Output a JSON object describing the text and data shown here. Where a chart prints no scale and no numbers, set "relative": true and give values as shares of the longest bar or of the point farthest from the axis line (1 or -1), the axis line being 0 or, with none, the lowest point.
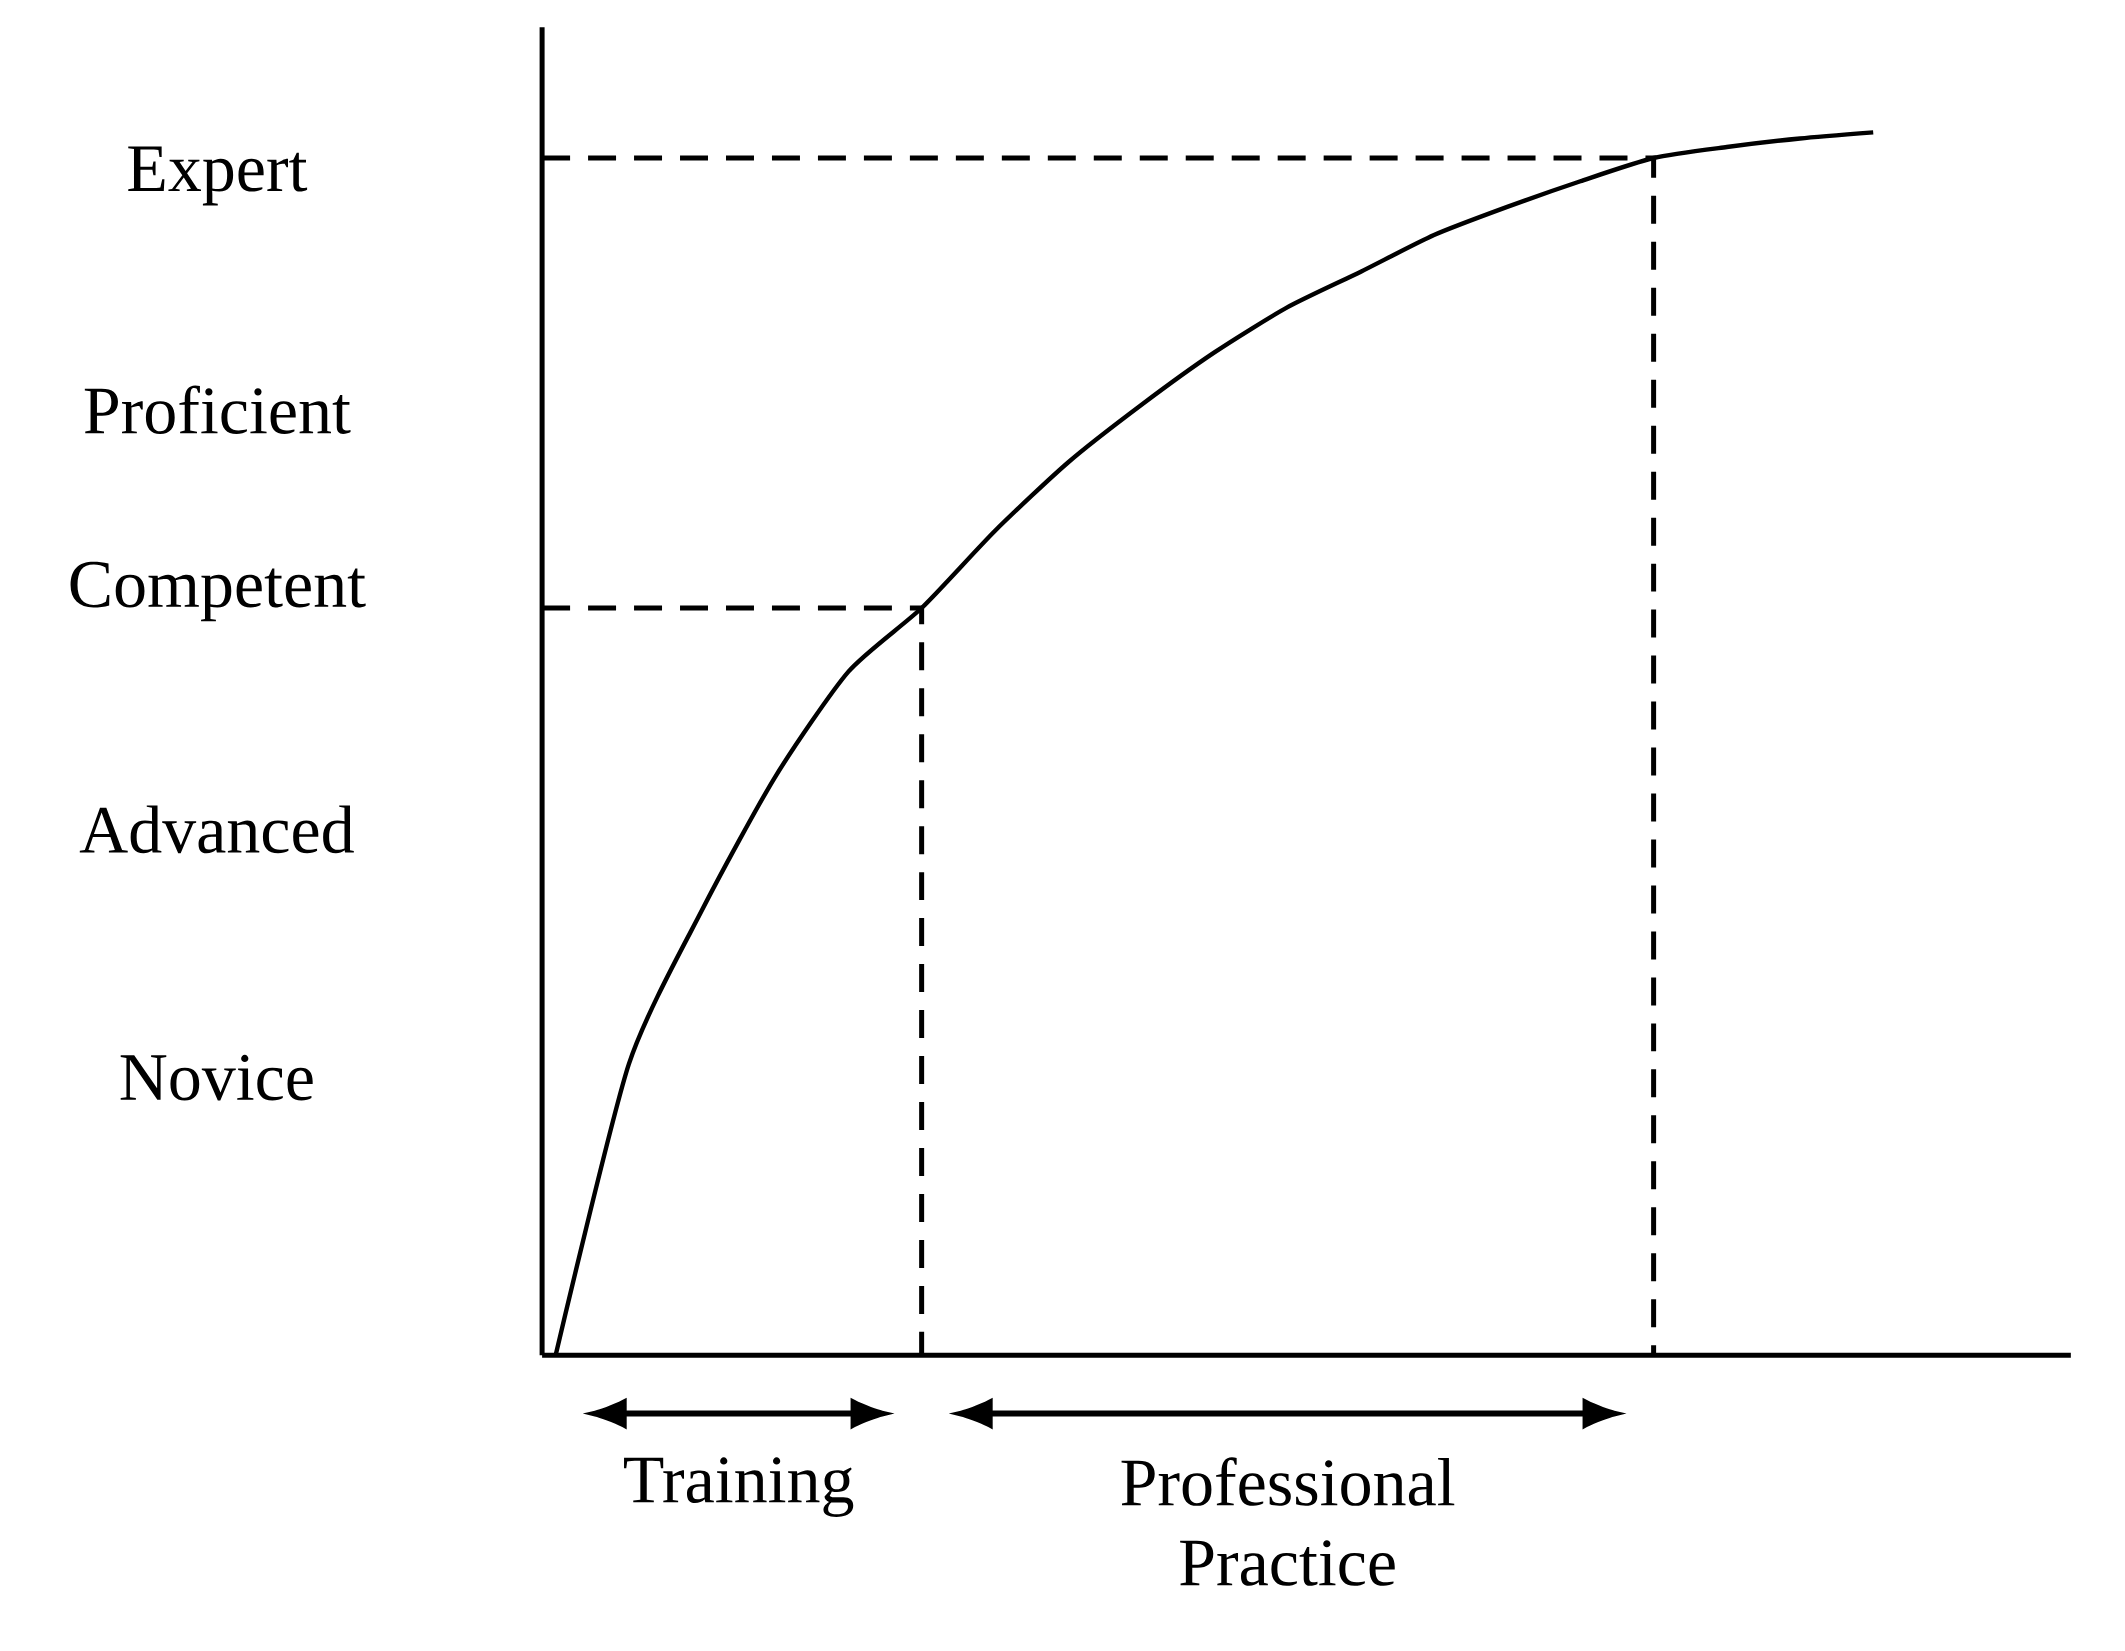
{
  "chart_data": {
    "type": "line",
    "relative": true,
    "categories": [
      null,
      null,
      null,
      null,
      null,
      null,
      null,
      null,
      null,
      null,
      null,
      null,
      null,
      null,
      null,
      null,
      null,
      null,
      null,
      null,
      null
    ],
    "series": [
      {
        "color": "#000000",
        "values": [
          0,
          0.238,
          0.364,
          0.473,
          0.559,
          0.611,
          0.674,
          0.73,
          0.777,
          0.82,
          0.857,
          0.886,
          0.916,
          0.939,
          0.96,
          0.979,
          0.988,
          0.995,
          1,
          null,
          null
        ]
      }
    ],
    "ref_lines": [
      {
        "axis": "y",
        "value": 0.611,
        "line_style": "dashed"
      },
      {
        "axis": "y",
        "value": 0.979,
        "line_style": "dashed"
      }
    ],
    "annotations": [
      "Novice",
      "Advanced",
      "Competent",
      "Proficient",
      "Expert",
      "Training",
      "Professional Practice"
    ]
  }
}
